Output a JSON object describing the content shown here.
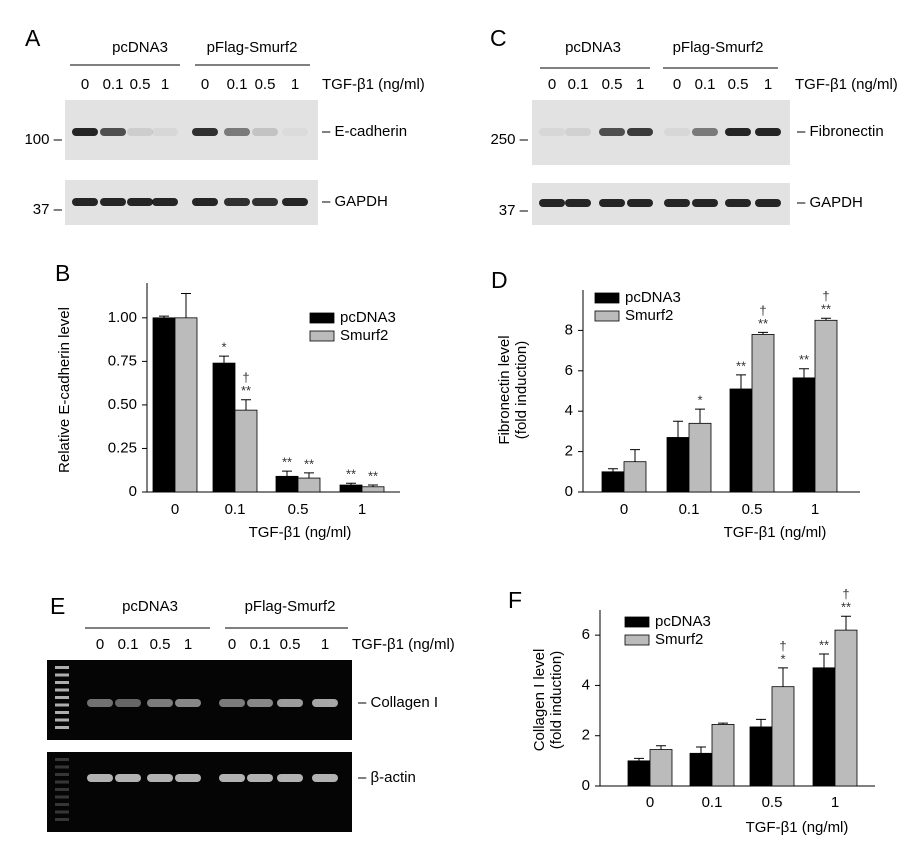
{
  "blots": [
    {
      "panel": "A",
      "groups": [
        "pcDNA3",
        "pFlag-Smurf2"
      ],
      "lanes": [
        "0",
        "0.1",
        "0.5",
        "1",
        "0",
        "0.1",
        "0.5",
        "1"
      ],
      "treatment": "TGF-β1 (ng/ml)",
      "rows": [
        {
          "marker": "100 –",
          "label": "– E-cadherin"
        },
        {
          "marker": "37 –",
          "label": "– GAPDH"
        }
      ]
    },
    {
      "panel": "C",
      "groups": [
        "pcDNA3",
        "pFlag-Smurf2"
      ],
      "lanes": [
        "0",
        "0.1",
        "0.5",
        "1",
        "0",
        "0.1",
        "0.5",
        "1"
      ],
      "treatment": "TGF-β1 (ng/ml)",
      "rows": [
        {
          "marker": "250 –",
          "label": "– Fibronectin"
        },
        {
          "marker": "37 –",
          "label": "– GAPDH"
        }
      ]
    },
    {
      "panel": "E",
      "groups": [
        "pcDNA3",
        "pFlag-Smurf2"
      ],
      "lanes": [
        "0",
        "0.1",
        "0.5",
        "1",
        "0",
        "0.1",
        "0.5",
        "1"
      ],
      "treatment": "TGF-β1 (ng/ml)",
      "rows": [
        {
          "label": "– Collagen I"
        },
        {
          "label": "– β-actin"
        }
      ]
    }
  ],
  "chart_data": [
    {
      "type": "bar",
      "panel": "B",
      "categories": [
        "0",
        "0.1",
        "0.5",
        "1"
      ],
      "series": [
        {
          "name": "pcDNA3",
          "color": "#000000",
          "values": [
            1.0,
            0.74,
            0.09,
            0.04
          ],
          "errors": [
            0.01,
            0.04,
            0.03,
            0.01
          ],
          "significance": [
            null,
            "*",
            "**",
            "**"
          ],
          "dagger": [
            null,
            null,
            null,
            null
          ]
        },
        {
          "name": "Smurf2",
          "color": "#bbbbbb",
          "values": [
            1.0,
            0.47,
            0.08,
            0.03
          ],
          "errors": [
            0.14,
            0.06,
            0.03,
            0.01
          ],
          "significance": [
            null,
            "**",
            "**",
            "**"
          ],
          "dagger": [
            null,
            "†",
            null,
            null
          ]
        }
      ],
      "ylim": [
        0,
        1.2
      ],
      "yticks": [
        0,
        0.25,
        {
          "value": 0.5,
          "label": "0.50"
        },
        0.75,
        {
          "value": 1,
          "label": "1.00"
        }
      ],
      "ylabel": "Relative E-cadherin level",
      "xlabel": "TGF-β1 (ng/ml)",
      "legend": "upper right"
    },
    {
      "type": "bar",
      "panel": "D",
      "categories": [
        "0",
        "0.1",
        "0.5",
        "1"
      ],
      "series": [
        {
          "name": "pcDNA3",
          "color": "#000000",
          "values": [
            1.0,
            2.7,
            5.1,
            5.65
          ],
          "errors": [
            0.15,
            0.8,
            0.7,
            0.45
          ],
          "significance": [
            null,
            null,
            "**",
            "**"
          ],
          "dagger": [
            null,
            null,
            null,
            null
          ]
        },
        {
          "name": "Smurf2",
          "color": "#bbbbbb",
          "values": [
            1.5,
            3.4,
            7.8,
            8.5
          ],
          "errors": [
            0.6,
            0.7,
            0.1,
            0.1
          ],
          "significance": [
            null,
            "*",
            "**",
            "**"
          ],
          "dagger": [
            null,
            null,
            "†",
            "†"
          ]
        }
      ],
      "ylim": [
        0,
        10
      ],
      "yticks": [
        0,
        2,
        4,
        6,
        8
      ],
      "ylabel": [
        "Fibronectin level",
        "(fold induction)"
      ],
      "xlabel": "TGF-β1 (ng/ml)",
      "legend": "upper left"
    },
    {
      "type": "bar",
      "panel": "F",
      "categories": [
        "0",
        "0.1",
        "0.5",
        "1"
      ],
      "series": [
        {
          "name": "pcDNA3",
          "color": "#000000",
          "values": [
            1.0,
            1.3,
            2.35,
            4.7
          ],
          "errors": [
            0.1,
            0.25,
            0.3,
            0.55
          ],
          "significance": [
            null,
            null,
            null,
            "**"
          ],
          "dagger": [
            null,
            null,
            null,
            null
          ]
        },
        {
          "name": "Smurf2",
          "color": "#bbbbbb",
          "values": [
            1.45,
            2.45,
            3.95,
            6.2
          ],
          "errors": [
            0.15,
            0.05,
            0.75,
            0.55
          ],
          "significance": [
            null,
            null,
            "*",
            "**"
          ],
          "dagger": [
            null,
            null,
            "†",
            "†"
          ]
        }
      ],
      "ylim": [
        0,
        7
      ],
      "yticks": [
        0,
        2,
        4,
        6
      ],
      "ylabel": [
        "Collagen I level",
        "(fold induction)"
      ],
      "xlabel": "TGF-β1 (ng/ml)",
      "legend": "upper left"
    }
  ]
}
